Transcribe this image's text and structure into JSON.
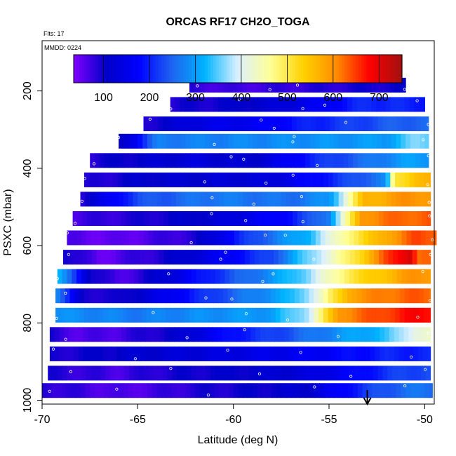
{
  "chart_data": {
    "type": "heatmap",
    "title": "ORCAS RF17 CH2O_TOGA",
    "flights_label": "Flts: 17",
    "date_label": "MMDD: 0224",
    "xlabel": "Latitude (deg N)",
    "ylabel": "PSXC (mbar)",
    "xlim": [
      -70,
      -49.5
    ],
    "ylim": [
      1010,
      70
    ],
    "x_ticks": [
      -70,
      -65,
      -60,
      -55,
      -50
    ],
    "y_ticks": [
      200,
      400,
      600,
      800,
      1000
    ],
    "colorbar": {
      "range": [
        35,
        750
      ],
      "ticks": [
        100,
        200,
        300,
        400,
        500,
        600,
        700
      ],
      "colors": [
        "#8000ff",
        "#0000c8",
        "#0000ff",
        "#1e64f0",
        "#00b4ff",
        "#dcf0ff",
        "#ffff96",
        "#ffd200",
        "#ff8c00",
        "#ff0000",
        "#a01010"
      ]
    },
    "marker": {
      "lat": -53.0,
      "label": "arrow"
    },
    "bands": [
      {
        "p": 185,
        "lat_min": -62.3,
        "lat_max": -51.0,
        "segments": [
          [
            -62.3,
            80
          ],
          [
            -60,
            70
          ],
          [
            -57,
            80
          ],
          [
            -54,
            90
          ],
          [
            -52,
            100
          ]
        ]
      },
      {
        "p": 235,
        "lat_min": -63.3,
        "lat_max": -50.0,
        "segments": [
          [
            -63.3,
            90
          ],
          [
            -61,
            100
          ],
          [
            -58,
            120
          ],
          [
            -55,
            170
          ],
          [
            -53,
            210
          ],
          [
            -51,
            200
          ]
        ]
      },
      {
        "p": 285,
        "lat_min": -64.7,
        "lat_max": -49.8,
        "segments": [
          [
            -64.7,
            90
          ],
          [
            -62,
            140
          ],
          [
            -59,
            160
          ],
          [
            -56,
            200
          ],
          [
            -53,
            230
          ],
          [
            -51,
            250
          ]
        ]
      },
      {
        "p": 330,
        "lat_min": -66.0,
        "lat_max": -49.8,
        "segments": [
          [
            -66,
            90
          ],
          [
            -64,
            270
          ],
          [
            -60,
            280
          ],
          [
            -56,
            290
          ],
          [
            -52,
            300
          ],
          [
            -50.5,
            360
          ]
        ]
      },
      {
        "p": 380,
        "lat_min": -67.5,
        "lat_max": -49.8,
        "segments": [
          [
            -67.5,
            90
          ],
          [
            -65,
            110
          ],
          [
            -62,
            130
          ],
          [
            -59,
            110
          ],
          [
            -56,
            200
          ],
          [
            -53,
            260
          ],
          [
            -51,
            300
          ]
        ]
      },
      {
        "p": 430,
        "lat_min": -67.8,
        "lat_max": -49.7,
        "segments": [
          [
            -67.8,
            80
          ],
          [
            -65,
            110
          ],
          [
            -61,
            120
          ],
          [
            -58,
            130
          ],
          [
            -55,
            200
          ],
          [
            -52,
            280
          ],
          [
            -51.6,
            500
          ],
          [
            -50.5,
            560
          ]
        ]
      },
      {
        "p": 480,
        "lat_min": -68.0,
        "lat_max": -49.7,
        "segments": [
          [
            -68,
            90
          ],
          [
            -65,
            230
          ],
          [
            -61,
            270
          ],
          [
            -57,
            260
          ],
          [
            -55,
            290
          ],
          [
            -53.2,
            560
          ],
          [
            -51,
            600
          ]
        ]
      },
      {
        "p": 530,
        "lat_min": -68.4,
        "lat_max": -49.7,
        "segments": [
          [
            -68.4,
            70
          ],
          [
            -65,
            90
          ],
          [
            -61,
            120
          ],
          [
            -57,
            190
          ],
          [
            -55,
            280
          ],
          [
            -53.3,
            600
          ],
          [
            -51,
            630
          ]
        ]
      },
      {
        "p": 580,
        "lat_min": -68.7,
        "lat_max": -49.4,
        "segments": [
          [
            -68.7,
            60
          ],
          [
            -66,
            50
          ],
          [
            -62,
            90
          ],
          [
            -59,
            230
          ],
          [
            -56,
            330
          ],
          [
            -54,
            480
          ],
          [
            -52,
            580
          ],
          [
            -50.5,
            640
          ]
        ]
      },
      {
        "p": 630,
        "lat_min": -68.9,
        "lat_max": -49.7,
        "segments": [
          [
            -68.9,
            110
          ],
          [
            -67,
            50
          ],
          [
            -64,
            90
          ],
          [
            -61,
            150
          ],
          [
            -58,
            230
          ],
          [
            -56,
            360
          ],
          [
            -54,
            480
          ],
          [
            -52,
            640
          ],
          [
            -50.8,
            720
          ],
          [
            -50.3,
            620
          ]
        ]
      },
      {
        "p": 680,
        "lat_min": -69.2,
        "lat_max": -49.7,
        "segments": [
          [
            -69.2,
            330
          ],
          [
            -67.5,
            110
          ],
          [
            -66,
            60
          ],
          [
            -64,
            110
          ],
          [
            -61,
            210
          ],
          [
            -58,
            290
          ],
          [
            -56,
            370
          ],
          [
            -54,
            500
          ],
          [
            -52,
            560
          ],
          [
            -50.5,
            600
          ]
        ]
      },
      {
        "p": 730,
        "lat_min": -69.3,
        "lat_max": -49.7,
        "segments": [
          [
            -69.3,
            300
          ],
          [
            -68,
            100
          ],
          [
            -66,
            90
          ],
          [
            -63,
            170
          ],
          [
            -60,
            250
          ],
          [
            -57,
            320
          ],
          [
            -55.5,
            420
          ],
          [
            -54,
            580
          ],
          [
            -52,
            620
          ],
          [
            -50.5,
            630
          ]
        ]
      },
      {
        "p": 780,
        "lat_min": -69.3,
        "lat_max": -49.7,
        "segments": [
          [
            -69.3,
            290
          ],
          [
            -65,
            270
          ],
          [
            -61,
            290
          ],
          [
            -58,
            300
          ],
          [
            -56,
            390
          ],
          [
            -54.5,
            600
          ],
          [
            -52,
            650
          ],
          [
            -50.5,
            680
          ]
        ]
      },
      {
        "p": 830,
        "lat_min": -69.6,
        "lat_max": -49.7,
        "segments": [
          [
            -69.6,
            90
          ],
          [
            -68,
            60
          ],
          [
            -66,
            70
          ],
          [
            -63,
            110
          ],
          [
            -60,
            190
          ],
          [
            -57,
            240
          ],
          [
            -54,
            300
          ],
          [
            -52,
            330
          ],
          [
            -50.5,
            420
          ]
        ]
      },
      {
        "p": 880,
        "lat_min": -69.6,
        "lat_max": -49.7,
        "segments": [
          [
            -69.6,
            90
          ],
          [
            -66,
            110
          ],
          [
            -62,
            130
          ],
          [
            -58,
            150
          ],
          [
            -55,
            170
          ],
          [
            -52,
            200
          ]
        ]
      },
      {
        "p": 930,
        "lat_min": -69.7,
        "lat_max": -49.7,
        "segments": [
          [
            -69.7,
            90
          ],
          [
            -66,
            70
          ],
          [
            -64,
            90
          ],
          [
            -62,
            100
          ],
          [
            -59,
            110
          ],
          [
            -56,
            130
          ],
          [
            -53,
            190
          ],
          [
            -51,
            230
          ]
        ]
      },
      {
        "p": 975,
        "lat_min": -70.0,
        "lat_max": -49.6,
        "segments": [
          [
            -70,
            90
          ],
          [
            -66,
            60
          ],
          [
            -64,
            70
          ],
          [
            -62,
            90
          ],
          [
            -59,
            100
          ],
          [
            -56,
            120
          ],
          [
            -53,
            220
          ],
          [
            -51,
            260
          ]
        ]
      }
    ]
  }
}
